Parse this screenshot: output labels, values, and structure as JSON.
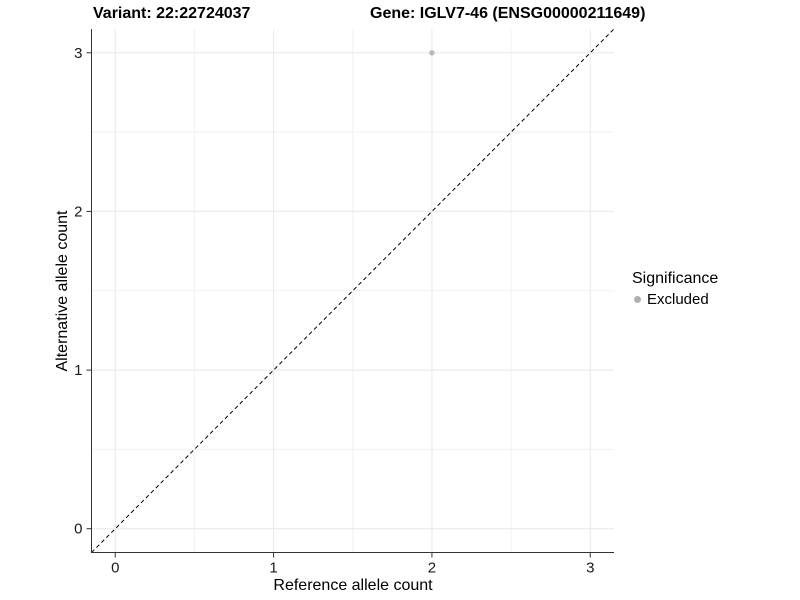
{
  "chart_data": {
    "type": "scatter",
    "title_left": "Variant: 22:22724037",
    "title_right": "Gene: IGLV7-46 (ENSG00000211649)",
    "xlabel": "Reference allele count",
    "ylabel": "Alternative allele count",
    "xlim": [
      -0.15,
      3.15
    ],
    "ylim": [
      -0.15,
      3.15
    ],
    "x_ticks": [
      0,
      1,
      2,
      3
    ],
    "y_ticks": [
      0,
      1,
      2,
      3
    ],
    "grid": "major and minor gridlines on, white background",
    "reference_line": {
      "kind": "abline",
      "slope": 1,
      "intercept": 0,
      "linetype": "dashed",
      "color": "#000000"
    },
    "series": [
      {
        "name": "Excluded",
        "color": "#b8b8b8",
        "points": [
          {
            "x": 2,
            "y": 3
          }
        ]
      }
    ],
    "legend": {
      "position": "right",
      "title": "Significance",
      "items": [
        {
          "label": "Excluded",
          "color": "#b0b0b0"
        }
      ]
    },
    "colors": {
      "axis_line": "#333333",
      "major_grid": "#e8e8e8",
      "minor_grid": "#f2f2f2",
      "tick_label": "#1a1a1a"
    }
  }
}
